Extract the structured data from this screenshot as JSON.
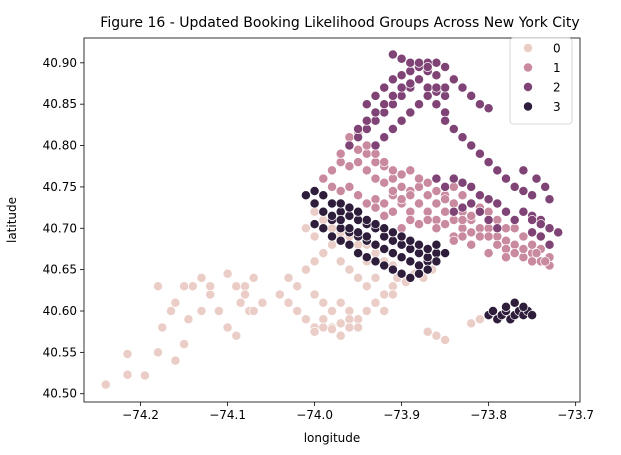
{
  "chart_data": {
    "type": "scatter",
    "title": "Figure 16 - Updated Booking Likelihood Groups Across New York City",
    "xlabel": "longitude",
    "ylabel": "latitude",
    "xlim": [
      -74.265,
      -73.695
    ],
    "ylim": [
      40.49,
      40.93
    ],
    "xticks": [
      -74.2,
      -74.1,
      -74.0,
      -73.9,
      -73.8,
      -73.7
    ],
    "xtick_labels": [
      "−74.2",
      "−74.1",
      "−74.0",
      "−73.9",
      "−73.8",
      "−73.7"
    ],
    "yticks": [
      40.5,
      40.55,
      40.6,
      40.65,
      40.7,
      40.75,
      40.8,
      40.85,
      40.9
    ],
    "ytick_labels": [
      "40.50",
      "40.55",
      "40.60",
      "40.65",
      "40.70",
      "40.75",
      "40.80",
      "40.85",
      "40.90"
    ],
    "grid": false,
    "legend_position": "top-right",
    "series": [
      {
        "name": "0",
        "color": "#ebcdc7",
        "x": [
          -74.24,
          -74.215,
          -74.215,
          -74.195,
          -74.18,
          -74.175,
          -74.165,
          -74.16,
          -74.15,
          -74.145,
          -74.14,
          -74.13,
          -74.12,
          -74.11,
          -74.1,
          -74.09,
          -74.085,
          -74.08,
          -74.075,
          -74.07,
          -74.18,
          -74.16,
          -74.15,
          -74.13,
          -74.12,
          -74.1,
          -74.09,
          -74.08,
          -74.07,
          -74.06,
          -74.04,
          -74.03,
          -74.02,
          -74.01,
          -74.0,
          -73.99,
          -73.98,
          -73.97,
          -73.96,
          -73.95,
          -73.94,
          -73.93,
          -73.92,
          -73.91,
          -73.9,
          -74.03,
          -74.02,
          -74.0,
          -73.99,
          -73.98,
          -73.97,
          -73.96,
          -73.95,
          -73.94,
          -73.93,
          -73.92,
          -73.91,
          -74.01,
          -74.0,
          -73.99,
          -73.98,
          -73.97,
          -73.96,
          -73.95,
          -73.94,
          -74.0,
          -73.99,
          -73.98,
          -73.97,
          -73.96,
          -74.01,
          -74.0,
          -73.99,
          -73.98,
          -73.97,
          -73.96,
          -73.95,
          -73.94,
          -73.93,
          -73.92,
          -73.91,
          -73.9,
          -74.0,
          -73.99,
          -73.98,
          -73.97,
          -73.96,
          -73.95,
          -73.94,
          -73.93,
          -73.92,
          -73.91,
          -73.905,
          -73.895,
          -73.885,
          -73.875,
          -73.865,
          -73.87,
          -73.86,
          -73.85,
          -73.82,
          -73.81
        ],
        "y": [
          40.511,
          40.523,
          40.548,
          40.522,
          40.55,
          40.58,
          40.6,
          40.54,
          40.56,
          40.59,
          40.63,
          40.6,
          40.62,
          40.6,
          40.58,
          40.57,
          40.61,
          40.63,
          40.6,
          40.64,
          40.63,
          40.61,
          40.63,
          40.64,
          40.63,
          40.645,
          40.63,
          40.62,
          40.6,
          40.61,
          40.62,
          40.64,
          40.63,
          40.65,
          40.66,
          40.67,
          40.68,
          40.66,
          40.65,
          40.64,
          40.63,
          40.64,
          40.62,
          40.63,
          40.64,
          40.61,
          40.6,
          40.62,
          40.61,
          40.6,
          40.61,
          40.6,
          40.59,
          40.6,
          40.61,
          40.6,
          40.62,
          40.59,
          40.58,
          40.59,
          40.58,
          40.585,
          40.59,
          40.58,
          40.6,
          40.575,
          40.58,
          40.578,
          40.57,
          40.58,
          40.7,
          40.69,
          40.7,
          40.68,
          40.69,
          40.68,
          40.67,
          40.66,
          40.67,
          40.66,
          40.65,
          40.64,
          40.72,
          40.71,
          40.7,
          40.695,
          40.69,
          40.68,
          40.68,
          40.67,
          40.66,
          40.655,
          40.64,
          40.635,
          40.645,
          40.64,
          40.65,
          40.575,
          40.57,
          40.565,
          40.585,
          40.59
        ]
      },
      {
        "name": "1",
        "color": "#c98a9f",
        "x": [
          -73.99,
          -73.98,
          -73.97,
          -73.96,
          -73.95,
          -73.94,
          -73.93,
          -73.92,
          -73.91,
          -73.9,
          -73.89,
          -73.88,
          -73.87,
          -73.86,
          -73.85,
          -73.84,
          -73.83,
          -73.82,
          -73.81,
          -73.8,
          -73.79,
          -73.78,
          -73.77,
          -73.76,
          -73.75,
          -73.74,
          -73.73,
          -73.98,
          -73.97,
          -73.96,
          -73.95,
          -73.94,
          -73.93,
          -73.92,
          -73.91,
          -73.9,
          -73.89,
          -73.88,
          -73.87,
          -73.86,
          -73.85,
          -73.84,
          -73.83,
          -73.82,
          -73.81,
          -73.8,
          -73.79,
          -73.78,
          -73.77,
          -73.76,
          -73.75,
          -73.74,
          -73.73,
          -73.97,
          -73.96,
          -73.95,
          -73.94,
          -73.93,
          -73.92,
          -73.91,
          -73.9,
          -73.89,
          -73.88,
          -73.87,
          -73.86,
          -73.85,
          -73.84,
          -73.83,
          -73.82,
          -73.81,
          -73.8,
          -73.79,
          -73.78,
          -73.77,
          -73.76,
          -73.75,
          -73.74,
          -73.96,
          -73.95,
          -73.94,
          -73.93,
          -73.92,
          -73.91,
          -73.9,
          -73.89,
          -73.88,
          -73.87,
          -73.86,
          -73.85,
          -73.84,
          -73.83,
          -73.82,
          -73.95,
          -73.94,
          -73.93,
          -73.92,
          -73.91,
          -73.9,
          -73.89,
          -73.88,
          -73.87,
          -73.86,
          -73.85,
          -73.84,
          -73.83,
          -73.84,
          -73.82,
          -73.8,
          -73.78,
          -73.76,
          -73.745,
          -73.735
        ],
        "y": [
          40.76,
          40.77,
          40.78,
          40.775,
          40.78,
          40.77,
          40.76,
          40.755,
          40.76,
          40.75,
          40.745,
          40.75,
          40.74,
          40.745,
          40.74,
          40.73,
          40.72,
          40.71,
          40.7,
          40.7,
          40.69,
          40.685,
          40.68,
          40.675,
          40.67,
          40.66,
          40.655,
          40.75,
          40.745,
          40.75,
          40.74,
          40.73,
          40.735,
          40.73,
          40.72,
          40.73,
          40.72,
          40.73,
          40.72,
          40.71,
          40.72,
          40.71,
          40.7,
          40.695,
          40.69,
          40.69,
          40.68,
          40.675,
          40.67,
          40.665,
          40.66,
          40.66,
          40.665,
          40.79,
          40.8,
          40.795,
          40.79,
          40.78,
          40.775,
          40.77,
          40.765,
          40.77,
          40.76,
          40.755,
          40.76,
          40.75,
          40.75,
          40.74,
          40.73,
          40.725,
          40.72,
          40.71,
          40.7,
          40.7,
          40.69,
          40.68,
          40.675,
          40.81,
          40.815,
          40.8,
          40.79,
          40.78,
          40.74,
          40.735,
          40.74,
          40.73,
          40.74,
          40.73,
          40.735,
          40.72,
          40.71,
          40.715,
          40.72,
          40.71,
          40.725,
          40.715,
          40.745,
          40.7,
          40.71,
          40.705,
          40.71,
          40.7,
          40.705,
          40.69,
          40.69,
          40.685,
          40.68,
          40.67,
          40.665,
          40.675,
          40.67,
          40.66
        ]
      },
      {
        "name": "2",
        "color": "#7f4375",
        "x": [
          -73.96,
          -73.95,
          -73.94,
          -73.93,
          -73.92,
          -73.91,
          -73.9,
          -73.89,
          -73.88,
          -73.87,
          -73.86,
          -73.85,
          -73.84,
          -73.83,
          -73.95,
          -73.94,
          -73.93,
          -73.92,
          -73.91,
          -73.9,
          -73.89,
          -73.88,
          -73.87,
          -73.86,
          -73.85,
          -73.94,
          -73.93,
          -73.92,
          -73.91,
          -73.9,
          -73.89,
          -73.88,
          -73.87,
          -73.86,
          -73.85,
          -73.93,
          -73.92,
          -73.91,
          -73.9,
          -73.89,
          -73.88,
          -73.87,
          -73.86,
          -73.91,
          -73.9,
          -73.89,
          -73.88,
          -73.87,
          -73.86,
          -73.85,
          -73.85,
          -73.84,
          -73.83,
          -73.82,
          -73.81,
          -73.8,
          -73.79,
          -73.78,
          -73.77,
          -73.76,
          -73.75,
          -73.86,
          -73.85,
          -73.84,
          -73.83,
          -73.82,
          -73.81,
          -73.8,
          -73.79,
          -73.78,
          -73.77,
          -73.76,
          -73.75,
          -73.74,
          -73.73,
          -73.84,
          -73.83,
          -73.82,
          -73.81,
          -73.8,
          -73.79,
          -73.75,
          -73.74,
          -73.73,
          -73.72,
          -73.75,
          -73.74,
          -73.73,
          -73.82,
          -73.81,
          -73.8,
          -73.76,
          -73.745,
          -73.735,
          -73.73
        ],
        "y": [
          40.8,
          40.81,
          40.82,
          40.83,
          40.84,
          40.85,
          40.86,
          40.87,
          40.88,
          40.89,
          40.9,
          40.895,
          40.88,
          40.87,
          40.82,
          40.83,
          40.84,
          40.85,
          40.86,
          40.87,
          40.875,
          40.88,
          40.87,
          40.865,
          40.86,
          40.85,
          40.86,
          40.87,
          40.88,
          40.885,
          40.89,
          40.895,
          40.9,
          40.885,
          40.87,
          40.8,
          40.81,
          40.82,
          40.83,
          40.84,
          40.85,
          40.86,
          40.87,
          40.91,
          40.905,
          40.9,
          40.9,
          40.895,
          40.85,
          40.84,
          40.83,
          40.82,
          40.81,
          40.8,
          40.79,
          40.78,
          40.77,
          40.76,
          40.75,
          40.745,
          40.74,
          40.76,
          40.75,
          40.76,
          40.755,
          40.75,
          40.74,
          40.735,
          40.73,
          40.72,
          40.71,
          40.72,
          40.715,
          40.71,
          40.7,
          40.72,
          40.725,
          40.73,
          40.72,
          40.71,
          40.7,
          40.71,
          40.705,
          40.7,
          40.695,
          40.695,
          40.69,
          40.68,
          40.86,
          40.85,
          40.845,
          40.77,
          40.76,
          40.75,
          40.735
        ]
      },
      {
        "name": "3",
        "color": "#2e1e3b",
        "x": [
          -74.01,
          -74.0,
          -73.99,
          -73.98,
          -73.97,
          -73.96,
          -73.95,
          -73.94,
          -73.93,
          -73.92,
          -73.91,
          -73.9,
          -73.89,
          -73.88,
          -73.87,
          -73.86,
          -74.0,
          -73.99,
          -73.98,
          -73.97,
          -73.96,
          -73.95,
          -73.94,
          -73.93,
          -73.92,
          -73.91,
          -73.9,
          -73.89,
          -73.88,
          -73.87,
          -73.99,
          -73.98,
          -73.97,
          -73.96,
          -73.95,
          -73.94,
          -73.93,
          -73.92,
          -73.91,
          -73.9,
          -73.89,
          -73.88,
          -73.87,
          -73.86,
          -74.0,
          -73.99,
          -73.98,
          -73.97,
          -73.96,
          -73.95,
          -73.94,
          -73.93,
          -73.92,
          -73.91,
          -73.9,
          -73.89,
          -73.88,
          -73.97,
          -73.96,
          -73.95,
          -73.94,
          -73.93,
          -73.92,
          -73.91,
          -73.9,
          -73.89,
          -73.88,
          -73.87,
          -73.86,
          -73.85,
          -73.8,
          -73.795,
          -73.79,
          -73.785,
          -73.78,
          -73.775,
          -73.77,
          -73.765,
          -73.76,
          -73.755,
          -73.75,
          -73.78,
          -73.77,
          -73.76
        ],
        "y": [
          40.74,
          40.73,
          40.72,
          40.71,
          40.7,
          40.695,
          40.69,
          40.685,
          40.68,
          40.675,
          40.67,
          40.665,
          40.66,
          40.655,
          40.66,
          40.67,
          40.745,
          40.74,
          40.73,
          40.72,
          40.715,
          40.71,
          40.705,
          40.7,
          40.69,
          40.685,
          40.68,
          40.675,
          40.67,
          40.665,
          40.72,
          40.715,
          40.71,
          40.7,
          40.695,
          40.69,
          40.68,
          40.675,
          40.67,
          40.665,
          40.66,
          40.655,
          40.65,
          40.66,
          40.705,
          40.7,
          40.69,
          40.685,
          40.68,
          40.67,
          40.665,
          40.66,
          40.655,
          40.65,
          40.645,
          40.64,
          40.645,
          40.73,
          40.725,
          40.72,
          40.71,
          40.705,
          40.7,
          40.695,
          40.69,
          40.685,
          40.68,
          40.675,
          40.68,
          40.67,
          40.595,
          40.6,
          40.59,
          40.595,
          40.6,
          40.59,
          40.595,
          40.6,
          40.595,
          40.6,
          40.595,
          40.605,
          40.61,
          40.605
        ]
      }
    ]
  }
}
